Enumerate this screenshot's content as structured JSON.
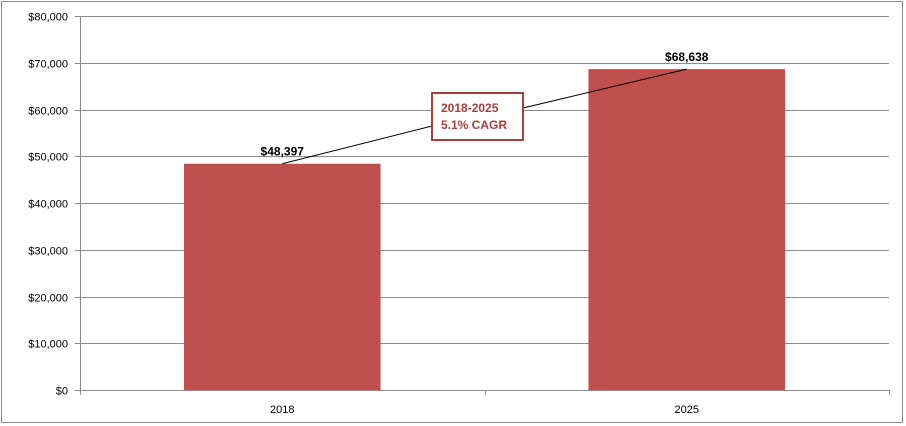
{
  "chart_data": {
    "type": "bar",
    "categories": [
      "2018",
      "2025"
    ],
    "values": [
      48397,
      68638
    ],
    "value_labels": [
      "$48,397",
      "$68,638"
    ],
    "ylim": [
      0,
      80000
    ],
    "ytick_values": [
      0,
      10000,
      20000,
      30000,
      40000,
      50000,
      60000,
      70000,
      80000
    ],
    "ytick_labels": [
      "$0",
      "$10,000",
      "$20,000",
      "$30,000",
      "$40,000",
      "$50,000",
      "$60,000",
      "$70,000",
      "$80,000"
    ],
    "grid": true,
    "legend": "none",
    "bar_color": "#c0504d",
    "annotation": {
      "lines": [
        "2018-2025",
        "5.1% CAGR"
      ],
      "text_color": "#a5403d",
      "border_color": "#a5403d"
    }
  }
}
